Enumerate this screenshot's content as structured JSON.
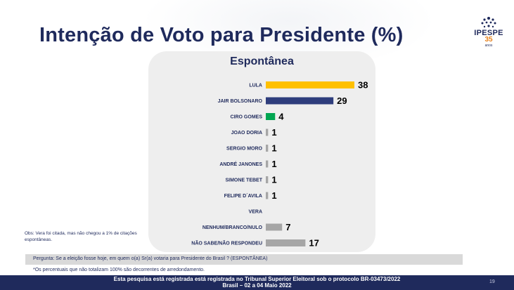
{
  "slide": {
    "title": "Intenção de Voto para Presidente (%)",
    "note": "Obs: Vera foi citada, mas não chegou a 1% de citações espontâneas.",
    "question": "Pergunta:  Se a eleição fosse hoje, em quem o(a) Sr(a) votaria para  Presidente do Brasil ? (ESPONTÂNEA)",
    "footnote": "*Os percentuais que não totalizam 100% são decorrentes de arredondamento.",
    "footer_line1": "Esta pesquisa está registrada está registrada no Tribunal Superior Eleitoral sob o protocolo BR-03473/2022",
    "footer_line2": "Brasil – 02 a 04 Maio 2022",
    "page_number": "19"
  },
  "logo": {
    "name": "IPESPE",
    "years": "35",
    "anos": "anos"
  },
  "colors": {
    "navy": "#1f2a5c",
    "gold": "#ffc000",
    "green": "#00a651",
    "gray": "#a6a6a6",
    "panel": "#eeeeee"
  },
  "chart_data": {
    "type": "bar",
    "orientation": "horizontal",
    "title": "Espontânea",
    "categories": [
      "LULA",
      "JAIR BOLSONARO",
      "CIRO GOMES",
      "JOAO DORIA",
      "SERGIO MORO",
      "ANDRÉ JANONES",
      "SIMONE TEBET",
      "FELIPE D´AVILA",
      "VERA",
      "NENHUM/BRANCO/NULO",
      "NÃO SABE/NÃO RESPONDEU"
    ],
    "values": [
      38,
      29,
      4,
      1,
      1,
      1,
      1,
      1,
      null,
      7,
      17
    ],
    "labels": [
      "38",
      "29",
      "4",
      "1",
      "1",
      "1",
      "1",
      "1",
      "",
      "7",
      "17"
    ],
    "bar_colors": [
      "#ffc000",
      "#2e3d7c",
      "#00a651",
      "#a6a6a6",
      "#a6a6a6",
      "#a6a6a6",
      "#a6a6a6",
      "#a6a6a6",
      "#a6a6a6",
      "#a6a6a6",
      "#a6a6a6"
    ],
    "xlim": [
      0,
      38
    ],
    "grid": false,
    "legend": "none"
  }
}
